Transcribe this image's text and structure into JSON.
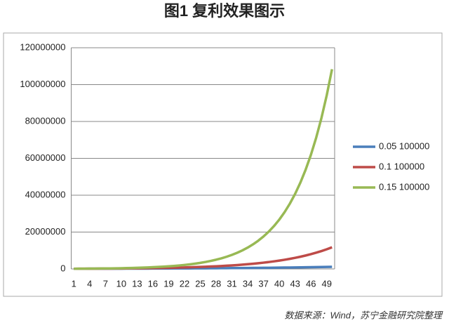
{
  "chart_data": {
    "type": "line",
    "title": "图1 复利效果图示",
    "source": "数据来源：Wind，苏宁金融研究院整理",
    "categories": [
      "1",
      null,
      null,
      "4",
      null,
      null,
      "7",
      null,
      null,
      "10",
      null,
      null,
      "13",
      null,
      null,
      "16",
      null,
      null,
      "19",
      null,
      null,
      "22",
      null,
      null,
      "25",
      null,
      null,
      "28",
      null,
      null,
      "31",
      null,
      null,
      "34",
      null,
      null,
      "37",
      null,
      null,
      "40",
      null,
      null,
      "43",
      null,
      null,
      "46",
      null,
      null,
      "49",
      null
    ],
    "ylim": [
      0,
      120000000
    ],
    "yticks": [
      0,
      20000000,
      40000000,
      60000000,
      80000000,
      100000000,
      120000000
    ],
    "grid": true,
    "legend": "right",
    "series": [
      {
        "name": "0.05 100000",
        "color": "#4a7ebb",
        "values": [
          105000,
          110250,
          115763,
          121551,
          127628,
          134010,
          140710,
          147746,
          155133,
          162889,
          171034,
          179586,
          188565,
          197993,
          207893,
          218287,
          229202,
          240662,
          252695,
          265330,
          278596,
          292526,
          307152,
          322510,
          338635,
          355567,
          373346,
          392013,
          411614,
          432194,
          453804,
          476494,
          500319,
          525335,
          551602,
          579182,
          608141,
          638548,
          670475,
          703999,
          739199,
          776159,
          814967,
          855715,
          898501,
          943426,
          990597,
          1040127,
          1092133,
          1146740
        ]
      },
      {
        "name": "0.1 100000",
        "color": "#be4b48",
        "values": [
          110000,
          121000,
          133100,
          146410,
          161051,
          177156,
          194872,
          214359,
          235795,
          259374,
          285312,
          313843,
          345227,
          379750,
          417725,
          459497,
          505447,
          555992,
          611591,
          672750,
          740025,
          814027,
          895430,
          984973,
          1083471,
          1191818,
          1310999,
          1442099,
          1586309,
          1744940,
          1919434,
          2111378,
          2322515,
          2554767,
          2810244,
          3091268,
          3400395,
          3740434,
          4114478,
          4525926,
          4978518,
          5476370,
          6024007,
          6626408,
          7289048,
          8017953,
          8819749,
          9701723,
          10671896,
          11739085
        ]
      },
      {
        "name": "0.15 100000",
        "color": "#98b954",
        "values": [
          115000,
          132250,
          152088,
          174901,
          201136,
          231306,
          266002,
          305902,
          351788,
          404556,
          465239,
          535025,
          615279,
          707571,
          813706,
          935762,
          1076126,
          1237545,
          1423177,
          1636654,
          1882152,
          2164475,
          2489146,
          2862518,
          3291895,
          3785680,
          4353531,
          5006561,
          5757545,
          6621177,
          7614354,
          8756507,
          10069983,
          11580480,
          13317552,
          15315185,
          17612463,
          20254332,
          23292482,
          26786354,
          30804307,
          35424953,
          40738696,
          46849500,
          53876925,
          61958464,
          71252233,
          81940068,
          94231078,
          108365740
        ]
      }
    ]
  }
}
